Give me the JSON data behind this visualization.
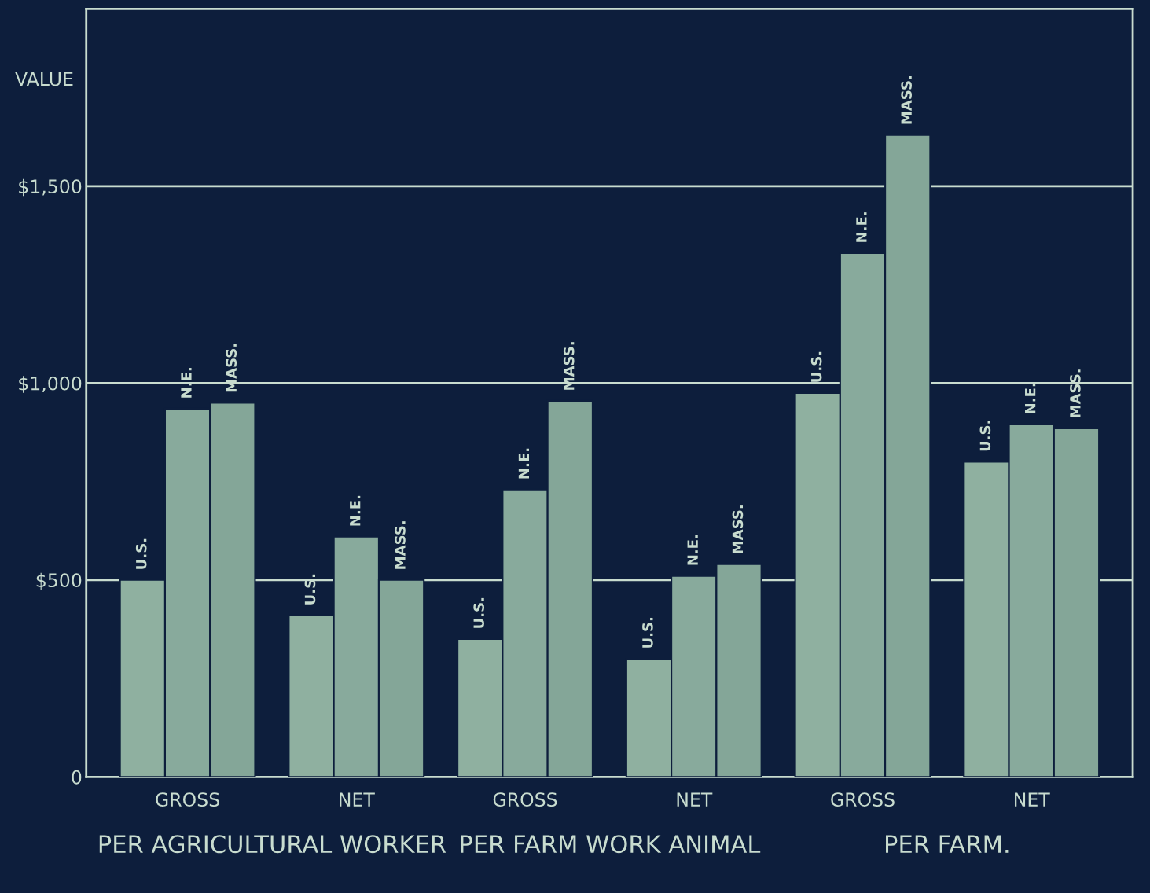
{
  "chart_data": {
    "type": "bar",
    "categories": [
      "GROSS",
      "NET",
      "GROSS",
      "NET",
      "GROSS",
      "NET"
    ],
    "series": [
      {
        "name": "U.S.",
        "color": "#8fb0a0",
        "values": [
          500,
          410,
          350,
          300,
          975,
          800
        ]
      },
      {
        "name": "N.E.",
        "color": "#88aa9c",
        "values": [
          935,
          610,
          730,
          510,
          1330,
          895
        ]
      },
      {
        "name": "MASS.",
        "color": "#84a698",
        "values": [
          950,
          500,
          955,
          540,
          1630,
          885
        ]
      }
    ],
    "ylabel": "VALUE",
    "ylim": [
      0,
      1950
    ],
    "yticks": [
      0,
      {
        "value": 500,
        "label": "$500"
      },
      {
        "value": 1000,
        "label": "$1,000"
      },
      {
        "value": 1500,
        "label": "$1,500"
      }
    ],
    "annotations": [
      "PER AGRICULTURAL WORKER",
      "PER FARM WORK ANIMAL",
      "PER FARM."
    ],
    "grid": "y",
    "legend": false
  }
}
